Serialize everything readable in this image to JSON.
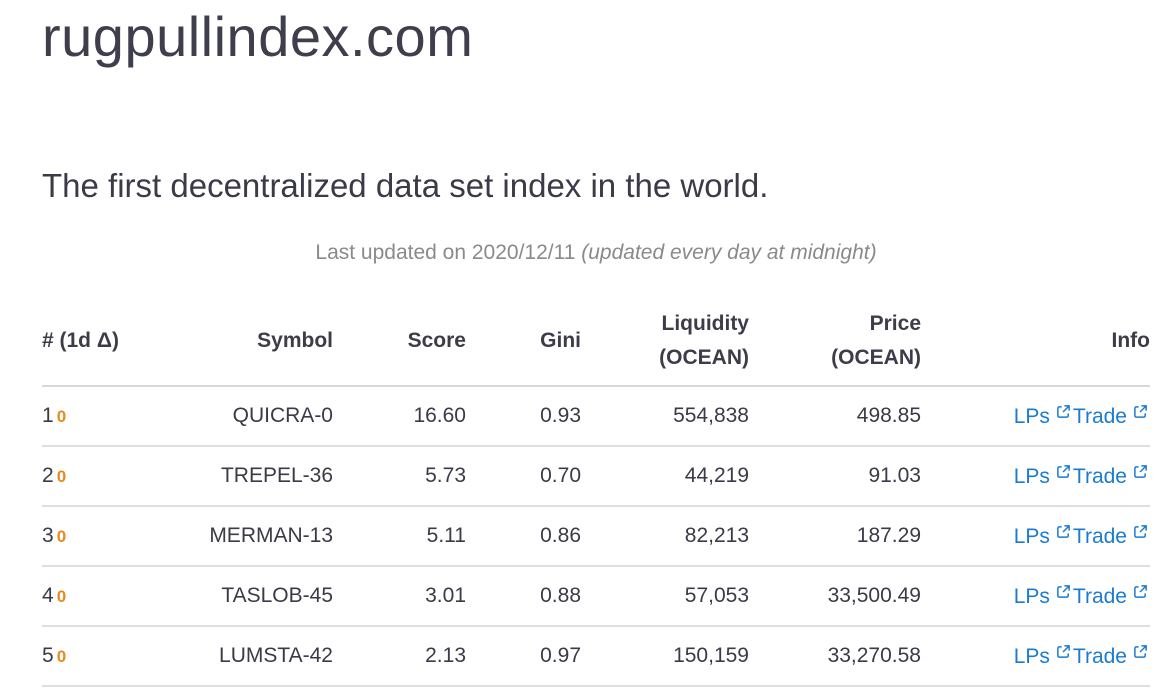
{
  "site": {
    "title": "rugpullindex.com"
  },
  "hero": {
    "subtitle": "The first decentralized data set index in the world."
  },
  "updated": {
    "prefix": "Last updated on 2020/12/11",
    "note": "(updated every day at midnight)"
  },
  "table": {
    "headers": {
      "rank": "# (1d Δ)",
      "symbol": "Symbol",
      "score": "Score",
      "gini": "Gini",
      "liquidity_line1": "Liquidity",
      "liquidity_line2": "(OCEAN)",
      "price_line1": "Price",
      "price_line2": "(OCEAN)",
      "info": "Info"
    },
    "rows": [
      {
        "rank": "1",
        "delta": "0",
        "symbol": "QUICRA-0",
        "score": "16.60",
        "gini": "0.93",
        "liquidity": "554,838",
        "price": "498.85",
        "lps": "LPs",
        "trade": "Trade"
      },
      {
        "rank": "2",
        "delta": "0",
        "symbol": "TREPEL-36",
        "score": "5.73",
        "gini": "0.70",
        "liquidity": "44,219",
        "price": "91.03",
        "lps": "LPs",
        "trade": "Trade"
      },
      {
        "rank": "3",
        "delta": "0",
        "symbol": "MERMAN-13",
        "score": "5.11",
        "gini": "0.86",
        "liquidity": "82,213",
        "price": "187.29",
        "lps": "LPs",
        "trade": "Trade"
      },
      {
        "rank": "4",
        "delta": "0",
        "symbol": "TASLOB-45",
        "score": "3.01",
        "gini": "0.88",
        "liquidity": "57,053",
        "price": "33,500.49",
        "lps": "LPs",
        "trade": "Trade"
      },
      {
        "rank": "5",
        "delta": "0",
        "symbol": "LUMSTA-42",
        "score": "2.13",
        "gini": "0.97",
        "liquidity": "150,159",
        "price": "33,270.58",
        "lps": "LPs",
        "trade": "Trade"
      }
    ]
  },
  "icons": {
    "external_link": "external-link-icon"
  },
  "colors": {
    "link": "#1a7bd1",
    "delta": "#e8891d",
    "text": "#3a3a48",
    "muted": "#8a8a8a"
  }
}
